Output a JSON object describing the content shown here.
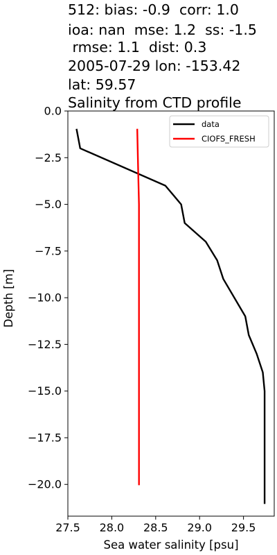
{
  "title_lines": [
    "512: bias: -0.9  corr: 1.0",
    "ioa: nan  mse: 1.2  ss: -1.5",
    " rmse: 1.1  dist: 0.3",
    "2005-07-29 lon: -153.42",
    "lat: 59.57",
    "Salinity from CTD profile"
  ],
  "colors": {
    "data": "#000000",
    "CIOFS_FRESH": "#ff0000"
  },
  "chart_data": {
    "type": "line",
    "title": "Salinity from CTD profile",
    "xlabel": "Sea water salinity [psu]",
    "ylabel": "Depth [m]",
    "xlim": [
      27.5,
      29.85
    ],
    "ylim": [
      -21.7,
      0.0
    ],
    "xticks": [
      27.5,
      28.0,
      28.5,
      29.0,
      29.5
    ],
    "xtick_labels": [
      "27.5",
      "28.0",
      "28.5",
      "29.0",
      "29.5"
    ],
    "yticks": [
      0.0,
      -2.5,
      -5.0,
      -7.5,
      -10.0,
      -12.5,
      -15.0,
      -17.5,
      -20.0
    ],
    "ytick_labels": [
      "0.0",
      "−2.5",
      "−5.0",
      "−7.5",
      "−10.0",
      "−12.5",
      "−15.0",
      "−17.5",
      "−20.0"
    ],
    "grid": false,
    "legend_position": "top-right",
    "series": [
      {
        "name": "data",
        "color": "#000000",
        "x": [
          27.6,
          27.64,
          28.61,
          28.79,
          28.83,
          29.07,
          29.2,
          29.27,
          29.52,
          29.56,
          29.65,
          29.72,
          29.74,
          29.74,
          29.74
        ],
        "y": [
          -1.0,
          -2.0,
          -4.0,
          -5.0,
          -6.0,
          -7.0,
          -8.0,
          -9.0,
          -11.0,
          -12.0,
          -13.0,
          -14.0,
          -15.0,
          -20.0,
          -21.0
        ]
      },
      {
        "name": "CIOFS_FRESH",
        "color": "#ff0000",
        "x": [
          28.29,
          28.3,
          28.31,
          28.31,
          28.31,
          28.31,
          28.31
        ],
        "y": [
          -1.0,
          -3.0,
          -5.0,
          -8.0,
          -12.0,
          -16.0,
          -20.0
        ]
      }
    ]
  }
}
